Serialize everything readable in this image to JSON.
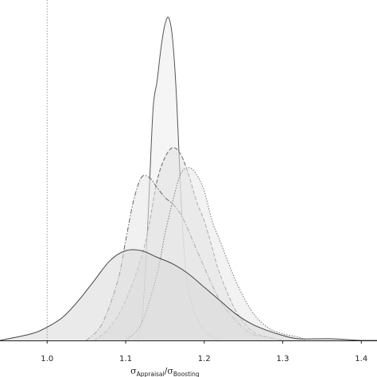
{
  "chart_data": {
    "type": "area",
    "title": "",
    "xlabel_symbol_numerator": "σ",
    "xlabel_sub_numerator": "Appraisal",
    "xlabel_slash": "/",
    "xlabel_symbol_denominator": "σ",
    "xlabel_sub_denominator": "Boosting",
    "ylabel": "",
    "xlim": [
      0.94,
      1.42
    ],
    "ylim": [
      0,
      1
    ],
    "xticks": [
      "1.0",
      "1.1",
      "1.2",
      "1.3",
      "1.4"
    ],
    "xtick_values": [
      1.0,
      1.1,
      1.2,
      1.3,
      1.4
    ],
    "reference_line_x": 1.0,
    "grid": false,
    "legend": "none",
    "series": [
      {
        "line_style": "solid",
        "fill": "#ededed",
        "stroke": "#555555",
        "x": [
          1.115,
          1.12,
          1.125,
          1.13,
          1.135,
          1.14,
          1.145,
          1.15,
          1.155,
          1.16,
          1.165,
          1.17,
          1.175,
          1.18,
          1.19,
          1.2,
          1.21,
          1.22
        ],
        "y": [
          0.0,
          0.05,
          0.2,
          0.45,
          0.7,
          0.78,
          0.88,
          0.95,
          0.97,
          0.9,
          0.72,
          0.45,
          0.25,
          0.15,
          0.07,
          0.03,
          0.01,
          0.0
        ]
      },
      {
        "line_style": "dashed",
        "fill": "#e0e0e0",
        "stroke": "#666666",
        "x": [
          1.06,
          1.08,
          1.1,
          1.12,
          1.13,
          1.14,
          1.15,
          1.16,
          1.17,
          1.18,
          1.19,
          1.2,
          1.21,
          1.22,
          1.24,
          1.26,
          1.28,
          1.3
        ],
        "y": [
          0.0,
          0.04,
          0.12,
          0.25,
          0.35,
          0.48,
          0.55,
          0.58,
          0.56,
          0.5,
          0.42,
          0.36,
          0.28,
          0.2,
          0.09,
          0.03,
          0.01,
          0.0
        ]
      },
      {
        "line_style": "dashdot",
        "fill": "#e6e6e6",
        "stroke": "#666666",
        "x": [
          1.05,
          1.07,
          1.09,
          1.1,
          1.11,
          1.12,
          1.13,
          1.14,
          1.15,
          1.16,
          1.17,
          1.18,
          1.2,
          1.22,
          1.24,
          1.26,
          1.28,
          1.3
        ],
        "y": [
          0.0,
          0.05,
          0.18,
          0.3,
          0.42,
          0.49,
          0.49,
          0.46,
          0.43,
          0.41,
          0.38,
          0.33,
          0.22,
          0.12,
          0.06,
          0.02,
          0.01,
          0.0
        ]
      },
      {
        "line_style": "dotted",
        "fill": "#e8e8e8",
        "stroke": "#777777",
        "x": [
          1.1,
          1.12,
          1.14,
          1.15,
          1.16,
          1.17,
          1.18,
          1.19,
          1.2,
          1.21,
          1.22,
          1.24,
          1.26,
          1.28,
          1.3,
          1.32,
          1.33
        ],
        "y": [
          0.0,
          0.05,
          0.2,
          0.32,
          0.42,
          0.5,
          0.52,
          0.5,
          0.45,
          0.36,
          0.3,
          0.18,
          0.09,
          0.04,
          0.02,
          0.01,
          0.0
        ]
      },
      {
        "line_style": "solid",
        "fill": "#d8d8d8",
        "stroke": "#444444",
        "x": [
          0.94,
          0.98,
          1.0,
          1.02,
          1.04,
          1.06,
          1.08,
          1.1,
          1.12,
          1.14,
          1.16,
          1.18,
          1.2,
          1.22,
          1.24,
          1.26,
          1.28,
          1.3,
          1.32,
          1.36,
          1.4,
          1.42
        ],
        "y": [
          0.0,
          0.02,
          0.04,
          0.07,
          0.12,
          0.18,
          0.24,
          0.27,
          0.27,
          0.25,
          0.23,
          0.2,
          0.16,
          0.12,
          0.08,
          0.05,
          0.03,
          0.015,
          0.005,
          0.005,
          0.0,
          0.0
        ]
      }
    ]
  }
}
